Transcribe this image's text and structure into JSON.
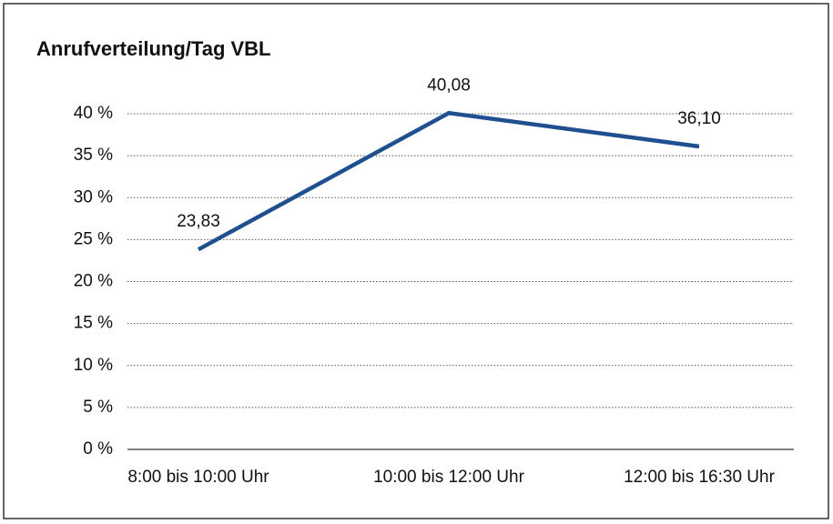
{
  "chart_data": {
    "type": "line",
    "title": "Anrufverteilung/Tag VBL",
    "categories": [
      "8:00 bis 10:00 Uhr",
      "10:00 bis 12:00 Uhr",
      "12:00 bis 16:30 Uhr"
    ],
    "series": [
      {
        "name": "Anrufverteilung",
        "color": "#1d4f91",
        "values": [
          23.83,
          40.08,
          36.1
        ],
        "value_labels": [
          "23,83",
          "40,08",
          "36,10"
        ]
      }
    ],
    "ylim": [
      0,
      40
    ],
    "yticks": [
      {
        "value": 0,
        "label": "0 %"
      },
      {
        "value": 5,
        "label": "5 %"
      },
      {
        "value": 10,
        "label": "10 %"
      },
      {
        "value": 15,
        "label": "15 %"
      },
      {
        "value": 20,
        "label": "20 %"
      },
      {
        "value": 25,
        "label": "25 %"
      },
      {
        "value": 30,
        "label": "30 %"
      },
      {
        "value": 35,
        "label": "35 %"
      },
      {
        "value": 40,
        "label": "40 %"
      }
    ],
    "grid": true
  }
}
